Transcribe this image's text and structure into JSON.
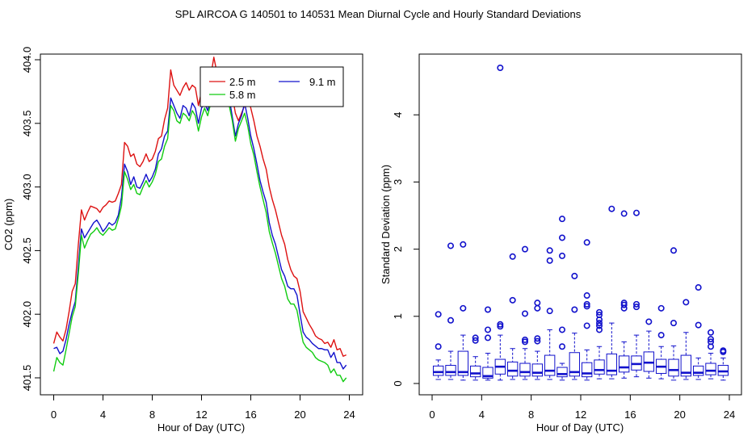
{
  "title": "SPL   AIRCOA G   140501 to 140531   Mean Diurnal Cycle and Hourly Standard Deviations",
  "colors": {
    "red": "#dd1111",
    "blue": "#1111cc",
    "green": "#11cc11",
    "axis": "#000000"
  },
  "chart_data": [
    {
      "type": "line",
      "title": "",
      "xlabel": "Hour of Day (UTC)",
      "ylabel": "CO2 (ppm)",
      "xlim": [
        0,
        24
      ],
      "ylim": [
        401.5,
        404.0
      ],
      "xticks": [
        0,
        4,
        8,
        12,
        16,
        20,
        24
      ],
      "yticks": [
        401.5,
        402.0,
        402.5,
        403.0,
        403.5,
        404.0
      ],
      "ytick_labels": [
        "401.5",
        "402.0",
        "402.5",
        "403.0",
        "403.5",
        "404.0"
      ],
      "legend": [
        "2.5 m",
        "9.1 m",
        "5.8 m"
      ],
      "legend_position": "top-right",
      "x": [
        0,
        0.25,
        0.5,
        0.75,
        1,
        1.25,
        1.5,
        1.75,
        2,
        2.25,
        2.5,
        2.75,
        3,
        3.25,
        3.5,
        3.75,
        4,
        4.25,
        4.5,
        4.75,
        5,
        5.25,
        5.5,
        5.75,
        6,
        6.25,
        6.5,
        6.75,
        7,
        7.25,
        7.5,
        7.75,
        8,
        8.25,
        8.5,
        8.75,
        9,
        9.25,
        9.5,
        9.75,
        10,
        10.25,
        10.5,
        10.75,
        11,
        11.25,
        11.5,
        11.75,
        12,
        12.25,
        12.5,
        12.75,
        13,
        13.25,
        13.5,
        13.75,
        14,
        14.25,
        14.5,
        14.75,
        15,
        15.25,
        15.5,
        15.75,
        16,
        16.25,
        16.5,
        16.75,
        17,
        17.25,
        17.5,
        17.75,
        18,
        18.25,
        18.5,
        18.75,
        19,
        19.25,
        19.5,
        19.75,
        20,
        20.25,
        20.5,
        20.75,
        21,
        21.25,
        21.5,
        21.75,
        22,
        22.25,
        22.5,
        22.75,
        23,
        23.25,
        23.5,
        23.75
      ],
      "series": [
        {
          "name": "2.5 m",
          "color": "red",
          "values": [
            401.77,
            401.86,
            401.82,
            401.79,
            401.88,
            402.02,
            402.18,
            402.24,
            402.55,
            402.82,
            402.74,
            402.8,
            402.85,
            402.84,
            402.83,
            402.8,
            402.84,
            402.86,
            402.89,
            402.88,
            402.89,
            402.95,
            403.02,
            403.35,
            403.32,
            403.24,
            403.26,
            403.18,
            403.16,
            403.2,
            403.26,
            403.2,
            403.22,
            403.28,
            403.38,
            403.4,
            403.53,
            403.62,
            403.92,
            403.8,
            403.76,
            403.72,
            403.78,
            403.82,
            403.76,
            403.8,
            403.78,
            403.64,
            403.75,
            403.85,
            403.8,
            403.87,
            404.02,
            403.9,
            403.84,
            403.88,
            403.92,
            403.82,
            403.72,
            403.58,
            403.52,
            403.58,
            403.64,
            403.72,
            403.62,
            403.52,
            403.4,
            403.32,
            403.22,
            403.14,
            403.0,
            402.9,
            402.82,
            402.72,
            402.62,
            402.55,
            402.43,
            402.35,
            402.3,
            402.28,
            402.18,
            402.02,
            401.97,
            401.92,
            401.88,
            401.83,
            401.81,
            401.8,
            401.77,
            401.78,
            401.74,
            401.8,
            401.72,
            401.73,
            401.67,
            401.68
          ]
        },
        {
          "name": "9.1 m",
          "color": "blue",
          "values": [
            401.73,
            401.74,
            401.69,
            401.71,
            401.8,
            401.92,
            402.02,
            402.1,
            402.38,
            402.67,
            402.6,
            402.64,
            402.68,
            402.72,
            402.74,
            402.7,
            402.65,
            402.68,
            402.72,
            402.7,
            402.72,
            402.78,
            402.92,
            403.18,
            403.12,
            403.02,
            403.08,
            403.0,
            402.99,
            403.04,
            403.1,
            403.04,
            403.08,
            403.14,
            403.26,
            403.3,
            403.4,
            403.44,
            403.7,
            403.64,
            403.58,
            403.54,
            403.64,
            403.62,
            403.56,
            403.66,
            403.62,
            403.5,
            403.62,
            403.66,
            403.6,
            403.7,
            403.84,
            403.78,
            403.7,
            403.8,
            403.76,
            403.7,
            403.55,
            403.4,
            403.5,
            403.56,
            403.66,
            403.54,
            403.4,
            403.3,
            403.18,
            403.05,
            402.96,
            402.88,
            402.72,
            402.62,
            402.55,
            402.45,
            402.35,
            402.3,
            402.22,
            402.2,
            402.2,
            402.15,
            402.0,
            401.86,
            401.82,
            401.8,
            401.77,
            401.75,
            401.73,
            401.73,
            401.72,
            401.72,
            401.66,
            401.7,
            401.62,
            401.62,
            401.57,
            401.6
          ]
        },
        {
          "name": "5.8 m",
          "color": "green",
          "values": [
            401.55,
            401.66,
            401.62,
            401.6,
            401.72,
            401.85,
            401.98,
            402.06,
            402.32,
            402.62,
            402.52,
            402.58,
            402.63,
            402.65,
            402.68,
            402.64,
            402.62,
            402.65,
            402.68,
            402.66,
            402.67,
            402.75,
            402.85,
            403.12,
            403.06,
            402.98,
            403.02,
            402.95,
            402.94,
            403.0,
            403.05,
            403.0,
            403.04,
            403.1,
            403.2,
            403.22,
            403.32,
            403.38,
            403.64,
            403.6,
            403.52,
            403.5,
            403.58,
            403.56,
            403.52,
            403.6,
            403.56,
            403.44,
            403.55,
            403.62,
            403.56,
            403.66,
            403.78,
            403.72,
            403.66,
            403.72,
            403.7,
            403.64,
            403.52,
            403.36,
            403.46,
            403.52,
            403.58,
            403.48,
            403.34,
            403.25,
            403.12,
            403.0,
            402.9,
            402.8,
            402.65,
            402.56,
            402.48,
            402.38,
            402.28,
            402.22,
            402.12,
            402.08,
            402.08,
            402.03,
            401.9,
            401.78,
            401.74,
            401.72,
            401.7,
            401.66,
            401.64,
            401.63,
            401.62,
            401.6,
            401.54,
            401.57,
            401.52,
            401.52,
            401.47,
            401.5
          ]
        }
      ]
    },
    {
      "type": "box",
      "title": "",
      "xlabel": "Hour of Day (UTC)",
      "ylabel": "Standard Deviation (ppm)",
      "xlim": [
        0,
        24
      ],
      "ylim": [
        0,
        4.7
      ],
      "xticks": [
        0,
        4,
        8,
        12,
        16,
        20,
        24
      ],
      "yticks": [
        0,
        1,
        2,
        3,
        4
      ],
      "series_color": "blue",
      "boxes": [
        {
          "hour": 0.5,
          "min": 0.06,
          "q1": 0.12,
          "median": 0.17,
          "q3": 0.26,
          "max": 0.35,
          "outliers": [
            0.55,
            1.03
          ]
        },
        {
          "hour": 1.5,
          "min": 0.06,
          "q1": 0.12,
          "median": 0.17,
          "q3": 0.27,
          "max": 0.48,
          "outliers": [
            0.94,
            2.05
          ]
        },
        {
          "hour": 2.5,
          "min": 0.05,
          "q1": 0.12,
          "median": 0.17,
          "q3": 0.48,
          "max": 0.72,
          "outliers": [
            1.12,
            2.07
          ]
        },
        {
          "hour": 3.5,
          "min": 0.05,
          "q1": 0.1,
          "median": 0.15,
          "q3": 0.26,
          "max": 0.4,
          "outliers": [
            0.64,
            0.68
          ]
        },
        {
          "hour": 4.5,
          "min": 0.05,
          "q1": 0.08,
          "median": 0.11,
          "q3": 0.24,
          "max": 0.45,
          "outliers": [
            0.68,
            0.8,
            1.1
          ]
        },
        {
          "hour": 5.5,
          "min": 0.05,
          "q1": 0.14,
          "median": 0.25,
          "q3": 0.36,
          "max": 0.72,
          "outliers": [
            0.85,
            0.88,
            4.7
          ]
        },
        {
          "hour": 6.5,
          "min": 0.06,
          "q1": 0.11,
          "median": 0.19,
          "q3": 0.32,
          "max": 0.52,
          "outliers": [
            1.24,
            1.89
          ]
        },
        {
          "hour": 7.5,
          "min": 0.06,
          "q1": 0.11,
          "median": 0.17,
          "q3": 0.3,
          "max": 0.52,
          "outliers": [
            0.62,
            0.65,
            1.04,
            2.0
          ]
        },
        {
          "hour": 8.5,
          "min": 0.06,
          "q1": 0.11,
          "median": 0.16,
          "q3": 0.29,
          "max": 0.48,
          "outliers": [
            0.63,
            0.67,
            1.12,
            1.2
          ]
        },
        {
          "hour": 9.5,
          "min": 0.06,
          "q1": 0.12,
          "median": 0.19,
          "q3": 0.42,
          "max": 0.8,
          "outliers": [
            1.08,
            1.83,
            1.98
          ]
        },
        {
          "hour": 10.5,
          "min": 0.05,
          "q1": 0.1,
          "median": 0.14,
          "q3": 0.24,
          "max": 0.3,
          "outliers": [
            0.55,
            0.8,
            1.9,
            2.17,
            2.45
          ]
        },
        {
          "hour": 11.5,
          "min": 0.06,
          "q1": 0.11,
          "median": 0.17,
          "q3": 0.46,
          "max": 0.75,
          "outliers": [
            1.1,
            1.6
          ]
        },
        {
          "hour": 12.5,
          "min": 0.05,
          "q1": 0.1,
          "median": 0.15,
          "q3": 0.31,
          "max": 0.5,
          "outliers": [
            0.86,
            1.15,
            1.18,
            1.31,
            2.1
          ]
        },
        {
          "hour": 13.5,
          "min": 0.07,
          "q1": 0.14,
          "median": 0.2,
          "q3": 0.35,
          "max": 0.55,
          "outliers": [
            0.8,
            0.86,
            0.9,
            0.95,
            1.02,
            1.06
          ]
        },
        {
          "hour": 14.5,
          "min": 0.07,
          "q1": 0.13,
          "median": 0.19,
          "q3": 0.44,
          "max": 0.9,
          "outliers": [
            2.6
          ]
        },
        {
          "hour": 15.5,
          "min": 0.08,
          "q1": 0.17,
          "median": 0.24,
          "q3": 0.41,
          "max": 0.62,
          "outliers": [
            1.12,
            1.17,
            1.2,
            2.53
          ]
        },
        {
          "hour": 16.5,
          "min": 0.1,
          "q1": 0.2,
          "median": 0.29,
          "q3": 0.41,
          "max": 0.72,
          "outliers": [
            1.14,
            1.18,
            2.54
          ]
        },
        {
          "hour": 17.5,
          "min": 0.08,
          "q1": 0.18,
          "median": 0.31,
          "q3": 0.47,
          "max": 0.78,
          "outliers": [
            0.92
          ]
        },
        {
          "hour": 18.5,
          "min": 0.07,
          "q1": 0.15,
          "median": 0.25,
          "q3": 0.36,
          "max": 0.55,
          "outliers": [
            0.72,
            1.12
          ]
        },
        {
          "hour": 19.5,
          "min": 0.05,
          "q1": 0.11,
          "median": 0.2,
          "q3": 0.36,
          "max": 0.56,
          "outliers": [
            0.9,
            1.98
          ]
        },
        {
          "hour": 20.5,
          "min": 0.06,
          "q1": 0.11,
          "median": 0.16,
          "q3": 0.42,
          "max": 0.76,
          "outliers": [
            1.21
          ]
        },
        {
          "hour": 21.5,
          "min": 0.06,
          "q1": 0.12,
          "median": 0.16,
          "q3": 0.26,
          "max": 0.38,
          "outliers": [
            0.87,
            1.43
          ]
        },
        {
          "hour": 22.5,
          "min": 0.07,
          "q1": 0.13,
          "median": 0.19,
          "q3": 0.3,
          "max": 0.45,
          "outliers": [
            0.55,
            0.62,
            0.66,
            0.76
          ]
        },
        {
          "hour": 23.5,
          "min": 0.05,
          "q1": 0.12,
          "median": 0.18,
          "q3": 0.27,
          "max": 0.38,
          "outliers": [
            0.47,
            0.49
          ]
        }
      ]
    }
  ]
}
